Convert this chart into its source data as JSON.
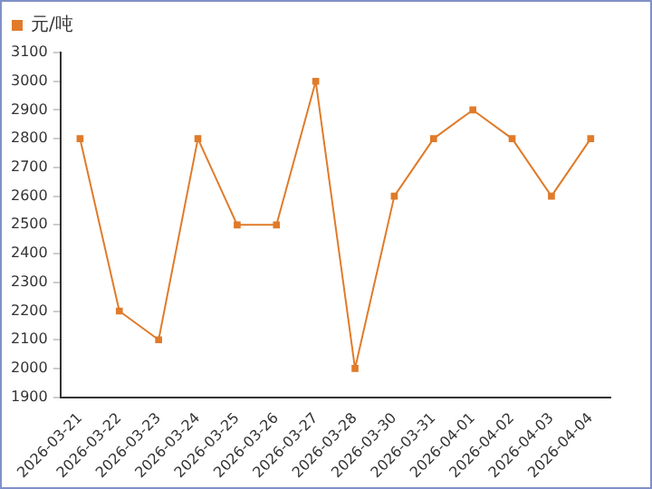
{
  "chart_data": {
    "type": "line",
    "categories": [
      "2026-03-21",
      "2026-03-22",
      "2026-03-23",
      "2026-03-24",
      "2026-03-25",
      "2026-03-26",
      "2026-03-27",
      "2026-03-28",
      "2026-03-30",
      "2026-03-31",
      "2026-04-01",
      "2026-04-02",
      "2026-04-03",
      "2026-04-04"
    ],
    "series": [
      {
        "name": "元/吨",
        "color": "#e07b2a",
        "values": [
          2800,
          2200,
          2100,
          2800,
          2500,
          2500,
          3000,
          2000,
          2600,
          2800,
          2900,
          2800,
          2600,
          2800
        ]
      }
    ],
    "ylim": [
      1900,
      3100
    ],
    "yticks": [
      1900,
      2000,
      2100,
      2200,
      2300,
      2400,
      2500,
      2600,
      2700,
      2800,
      2900,
      3000,
      3100
    ],
    "grid": false,
    "legend": "top left",
    "marker": "square",
    "line_style": "solid"
  }
}
